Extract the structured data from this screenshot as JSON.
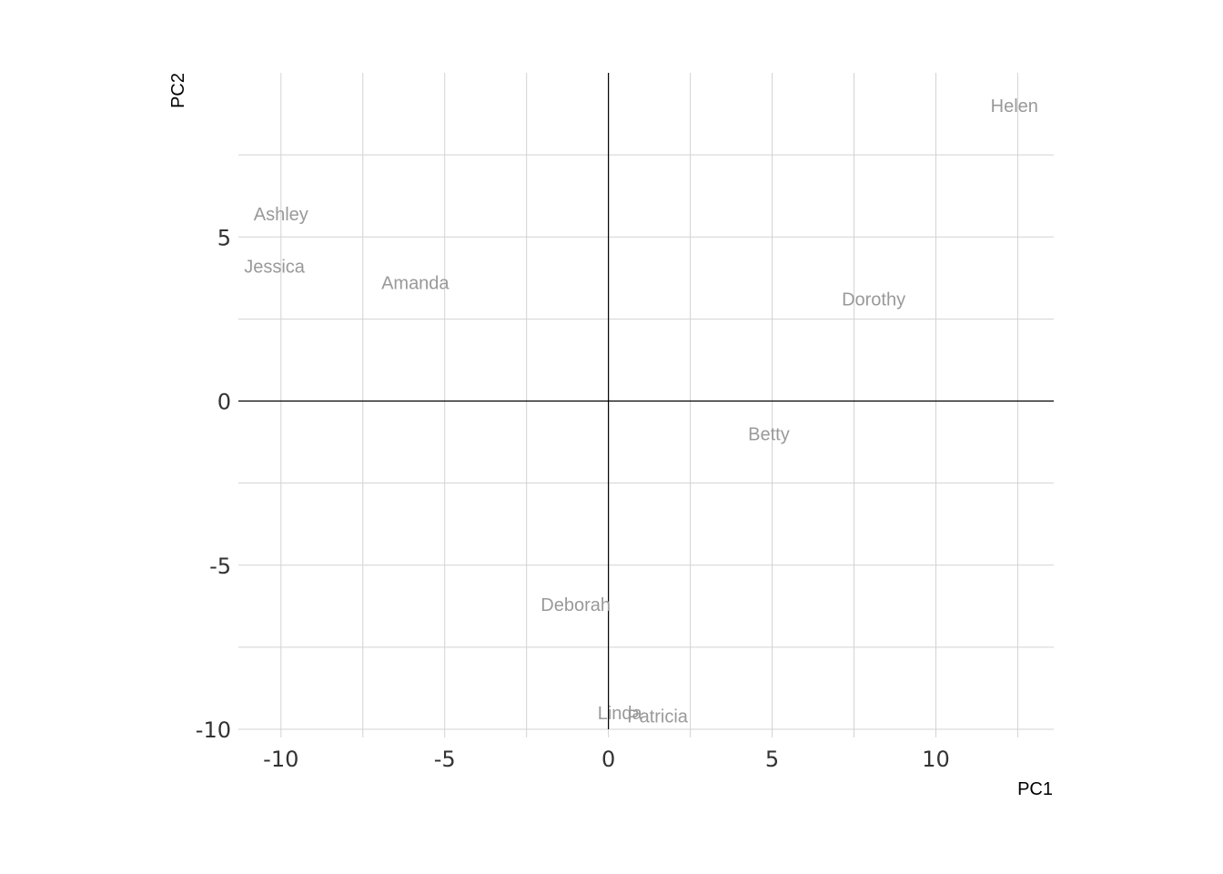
{
  "chart_data": {
    "type": "scatter",
    "title": "",
    "xlabel": "PC1",
    "ylabel": "PC2",
    "xlim": [
      -11.3,
      13.6
    ],
    "ylim": [
      -10,
      10
    ],
    "x_major_ticks": [
      -10,
      -5,
      0,
      5,
      10
    ],
    "x_minor_ticks": [
      -7.5,
      -2.5,
      2.5,
      7.5,
      12.5
    ],
    "y_major_ticks": [
      -10,
      -5,
      0,
      5
    ],
    "y_minor_ticks": [
      -7.5,
      -2.5,
      2.5,
      7.5
    ],
    "x_tick_labels": [
      "-10",
      "-5",
      "0",
      "5",
      "10"
    ],
    "y_tick_labels": [
      "-10",
      "-5",
      "0",
      "5"
    ],
    "grid": true,
    "reference_lines": {
      "x": 0,
      "y": 0
    },
    "label_color": "#999999",
    "points": [
      {
        "label": "Helen",
        "x": 12.4,
        "y": 9.0
      },
      {
        "label": "Ashley",
        "x": -10.0,
        "y": 5.7
      },
      {
        "label": "Jessica",
        "x": -10.2,
        "y": 4.1
      },
      {
        "label": "Amanda",
        "x": -5.9,
        "y": 3.6
      },
      {
        "label": "Dorothy",
        "x": 8.1,
        "y": 3.1
      },
      {
        "label": "Betty",
        "x": 4.9,
        "y": -1.0
      },
      {
        "label": "Deborah",
        "x": -1.0,
        "y": -6.2
      },
      {
        "label": "Linda",
        "x": 0.35,
        "y": -9.5
      },
      {
        "label": "Patricia",
        "x": 1.5,
        "y": -9.6
      }
    ]
  }
}
